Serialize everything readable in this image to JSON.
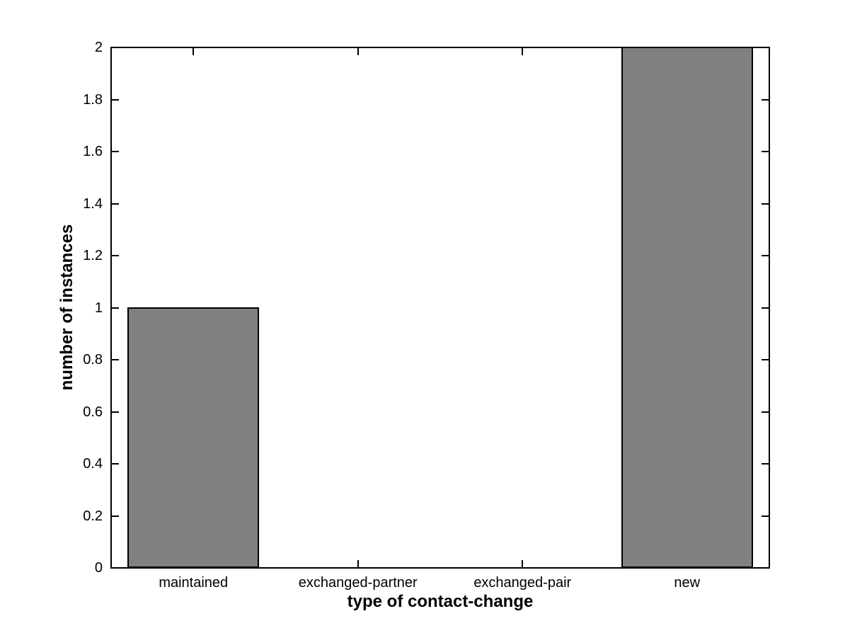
{
  "figure": {
    "background": "#ffffff"
  },
  "chart_data": {
    "type": "bar",
    "xlabel": "type of contact-change",
    "ylabel": "number of instances",
    "categories": [
      "maintained",
      "exchanged-partner",
      "exchanged-pair",
      "new"
    ],
    "values": [
      1,
      0,
      0,
      2
    ],
    "ylim": [
      0,
      2
    ],
    "yticks": [
      0,
      0.2,
      0.4,
      0.6,
      0.8,
      1,
      1.2,
      1.4,
      1.6,
      1.8,
      2
    ],
    "ytick_labels": [
      "0",
      "0.2",
      "0.4",
      "0.6",
      "0.8",
      "1",
      "1.2",
      "1.4",
      "1.6",
      "1.8",
      "2"
    ],
    "bar_color": "#808080",
    "bar_edge_color": "#000000",
    "axis_color": "#000000",
    "bar_width_fraction": 0.8,
    "grid": false,
    "legend_position": "none"
  }
}
